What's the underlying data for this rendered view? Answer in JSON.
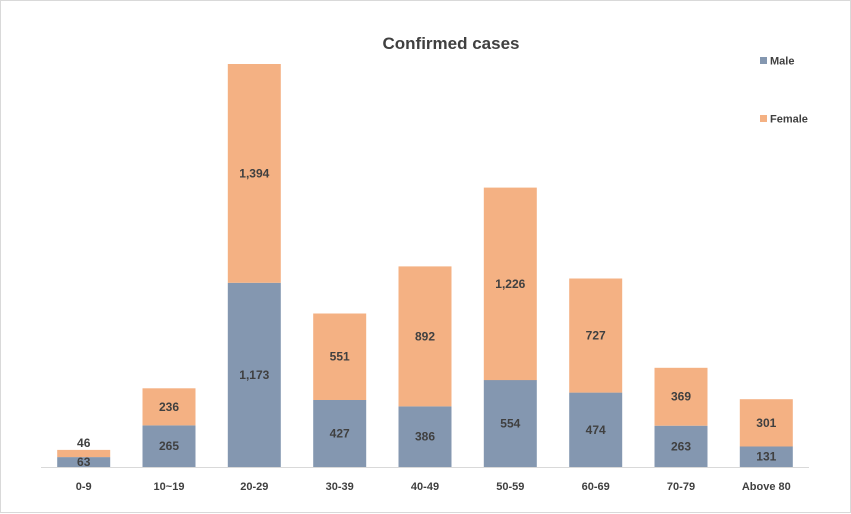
{
  "chart_data": {
    "type": "bar",
    "stacked": true,
    "title": "Confirmed cases",
    "xlabel": "",
    "ylabel": "",
    "ylim": [
      0,
      2600
    ],
    "grid": false,
    "legend_position": "top-right",
    "categories": [
      "0-9",
      "10~19",
      "20-29",
      "30-39",
      "40-49",
      "50-59",
      "60-69",
      "70-79",
      "Above 80"
    ],
    "series": [
      {
        "name": "Male",
        "color": "#8497b0",
        "values": [
          63,
          265,
          1173,
          427,
          386,
          554,
          474,
          263,
          131
        ],
        "labels": [
          "63",
          "265",
          "1,173",
          "427",
          "386",
          "554",
          "474",
          "263",
          "131"
        ]
      },
      {
        "name": "Female",
        "color": "#f4b183",
        "values": [
          46,
          236,
          1394,
          551,
          892,
          1226,
          727,
          369,
          301
        ],
        "labels": [
          "46",
          "236",
          "1,394",
          "551",
          "892",
          "1,226",
          "727",
          "369",
          "301"
        ]
      }
    ]
  }
}
